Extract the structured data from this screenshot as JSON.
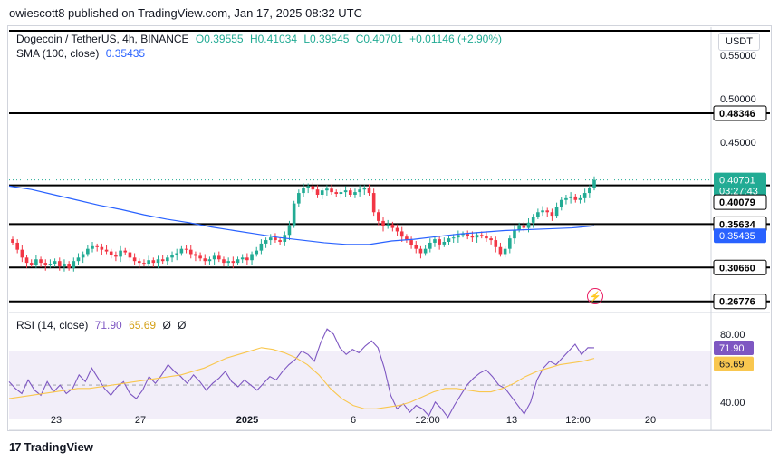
{
  "publisher": "owiescott8 published on TradingView.com, Jan 17, 2025 08:32 UTC",
  "legend": {
    "symbol": "Dogecoin / TetherUS, 4h, BINANCE",
    "open": "O0.39555",
    "high": "H0.41034",
    "low": "L0.39545",
    "close": "C0.40701",
    "change": "+0.01146 (+2.90%)",
    "sma_label": "SMA (100, close)",
    "sma_value": "0.35435",
    "rsi_label": "RSI (14, close)",
    "rsi_value": "71.90",
    "rsi_ma_value": "65.69",
    "rsi_extra1": "Ø",
    "rsi_extra2": "Ø"
  },
  "currency": "USDT",
  "footer": "TradingView",
  "colors": {
    "up": "#22ab94",
    "down": "#f23645",
    "sma": "#2962ff",
    "rsi": "#7e57c2",
    "rsi_ma": "#f9c74f",
    "level": "#000000"
  },
  "chart_data": [
    {
      "type": "candlestick",
      "title": "Dogecoin / TetherUS, 4h, BINANCE",
      "ylim": [
        0.255,
        0.58
      ],
      "y_ticks": [
        "0.55000",
        "0.50000",
        "0.45000"
      ],
      "x_ticks": [
        "23",
        "27",
        "2025",
        "6",
        "12:00",
        "13",
        "12:00",
        "20"
      ],
      "horizontal_levels": [
        "0.48346",
        "0.40079",
        "0.35634",
        "0.30660",
        "0.26776"
      ],
      "price_tags": [
        {
          "label": "0.48346",
          "value": 0.48346,
          "style": "level"
        },
        {
          "label": "0.40701",
          "value": 0.40701,
          "style": "last"
        },
        {
          "label": "03:27:43",
          "value": 0.3945,
          "style": "countdown"
        },
        {
          "label": "0.40079",
          "value": 0.3815,
          "style": "level"
        },
        {
          "label": "0.35634",
          "value": 0.35634,
          "style": "level"
        },
        {
          "label": "0.35435",
          "value": 0.343,
          "style": "sma"
        },
        {
          "label": "0.30660",
          "value": 0.3066,
          "style": "level"
        },
        {
          "label": "0.26776",
          "value": 0.26776,
          "style": "level"
        }
      ],
      "close": [
        0.335,
        0.327,
        0.318,
        0.312,
        0.31,
        0.316,
        0.312,
        0.309,
        0.311,
        0.314,
        0.308,
        0.311,
        0.306,
        0.314,
        0.318,
        0.322,
        0.328,
        0.331,
        0.33,
        0.327,
        0.325,
        0.321,
        0.319,
        0.326,
        0.324,
        0.318,
        0.314,
        0.312,
        0.311,
        0.315,
        0.312,
        0.316,
        0.314,
        0.318,
        0.321,
        0.323,
        0.328,
        0.327,
        0.322,
        0.32,
        0.317,
        0.314,
        0.316,
        0.32,
        0.316,
        0.312,
        0.314,
        0.312,
        0.316,
        0.318,
        0.315,
        0.322,
        0.326,
        0.334,
        0.338,
        0.341,
        0.338,
        0.336,
        0.344,
        0.355,
        0.38,
        0.392,
        0.398,
        0.4,
        0.396,
        0.39,
        0.395,
        0.397,
        0.393,
        0.391,
        0.393,
        0.395,
        0.39,
        0.393,
        0.396,
        0.398,
        0.392,
        0.37,
        0.36,
        0.354,
        0.356,
        0.352,
        0.348,
        0.342,
        0.338,
        0.332,
        0.328,
        0.323,
        0.328,
        0.335,
        0.339,
        0.333,
        0.336,
        0.34,
        0.341,
        0.344,
        0.345,
        0.343,
        0.341,
        0.344,
        0.343,
        0.34,
        0.338,
        0.33,
        0.322,
        0.328,
        0.34,
        0.35,
        0.355,
        0.352,
        0.358,
        0.365,
        0.37,
        0.372,
        0.37,
        0.366,
        0.376,
        0.384,
        0.386,
        0.388,
        0.384,
        0.386,
        0.392,
        0.398,
        0.407
      ],
      "sma": [
        0.4,
        0.396,
        0.39,
        0.384,
        0.378,
        0.373,
        0.367,
        0.362,
        0.358,
        0.353,
        0.349,
        0.345,
        0.341,
        0.338,
        0.335,
        0.333,
        0.333,
        0.337,
        0.339,
        0.342,
        0.345,
        0.347,
        0.349,
        0.35,
        0.351,
        0.352,
        0.3544
      ],
      "rsi": [
        52,
        48,
        45,
        53,
        47,
        44,
        52,
        46,
        50,
        45,
        48,
        56,
        52,
        60,
        54,
        48,
        44,
        49,
        52,
        45,
        42,
        47,
        55,
        51,
        56,
        62,
        58,
        55,
        51,
        56,
        52,
        47,
        51,
        54,
        58,
        52,
        49,
        53,
        50,
        47,
        51,
        55,
        53,
        58,
        62,
        65,
        70,
        68,
        64,
        75,
        83,
        80,
        72,
        68,
        71,
        69,
        73,
        76,
        72,
        60,
        44,
        36,
        39,
        34,
        38,
        36,
        32,
        40,
        36,
        31,
        38,
        44,
        50,
        54,
        57,
        59,
        55,
        50,
        48,
        43,
        38,
        33,
        40,
        53,
        60,
        64,
        62,
        66,
        70,
        74,
        68,
        72,
        71.9
      ],
      "rsi_ma": [
        42,
        43,
        44,
        45,
        46,
        47,
        48,
        48,
        49,
        50,
        51,
        52,
        53,
        54,
        55,
        56,
        58,
        60,
        63,
        66,
        68,
        70,
        72,
        71,
        69,
        66,
        62,
        56,
        48,
        42,
        38,
        36,
        36,
        37,
        38,
        40,
        43,
        46,
        48,
        48,
        47,
        46,
        46,
        48,
        51,
        55,
        58,
        60,
        62,
        63,
        64,
        65.69
      ],
      "rsi_ylim": [
        25,
        90
      ],
      "rsi_ticks": [
        "80.00",
        "40.00"
      ],
      "rsi_band": [
        70,
        30
      ]
    }
  ]
}
